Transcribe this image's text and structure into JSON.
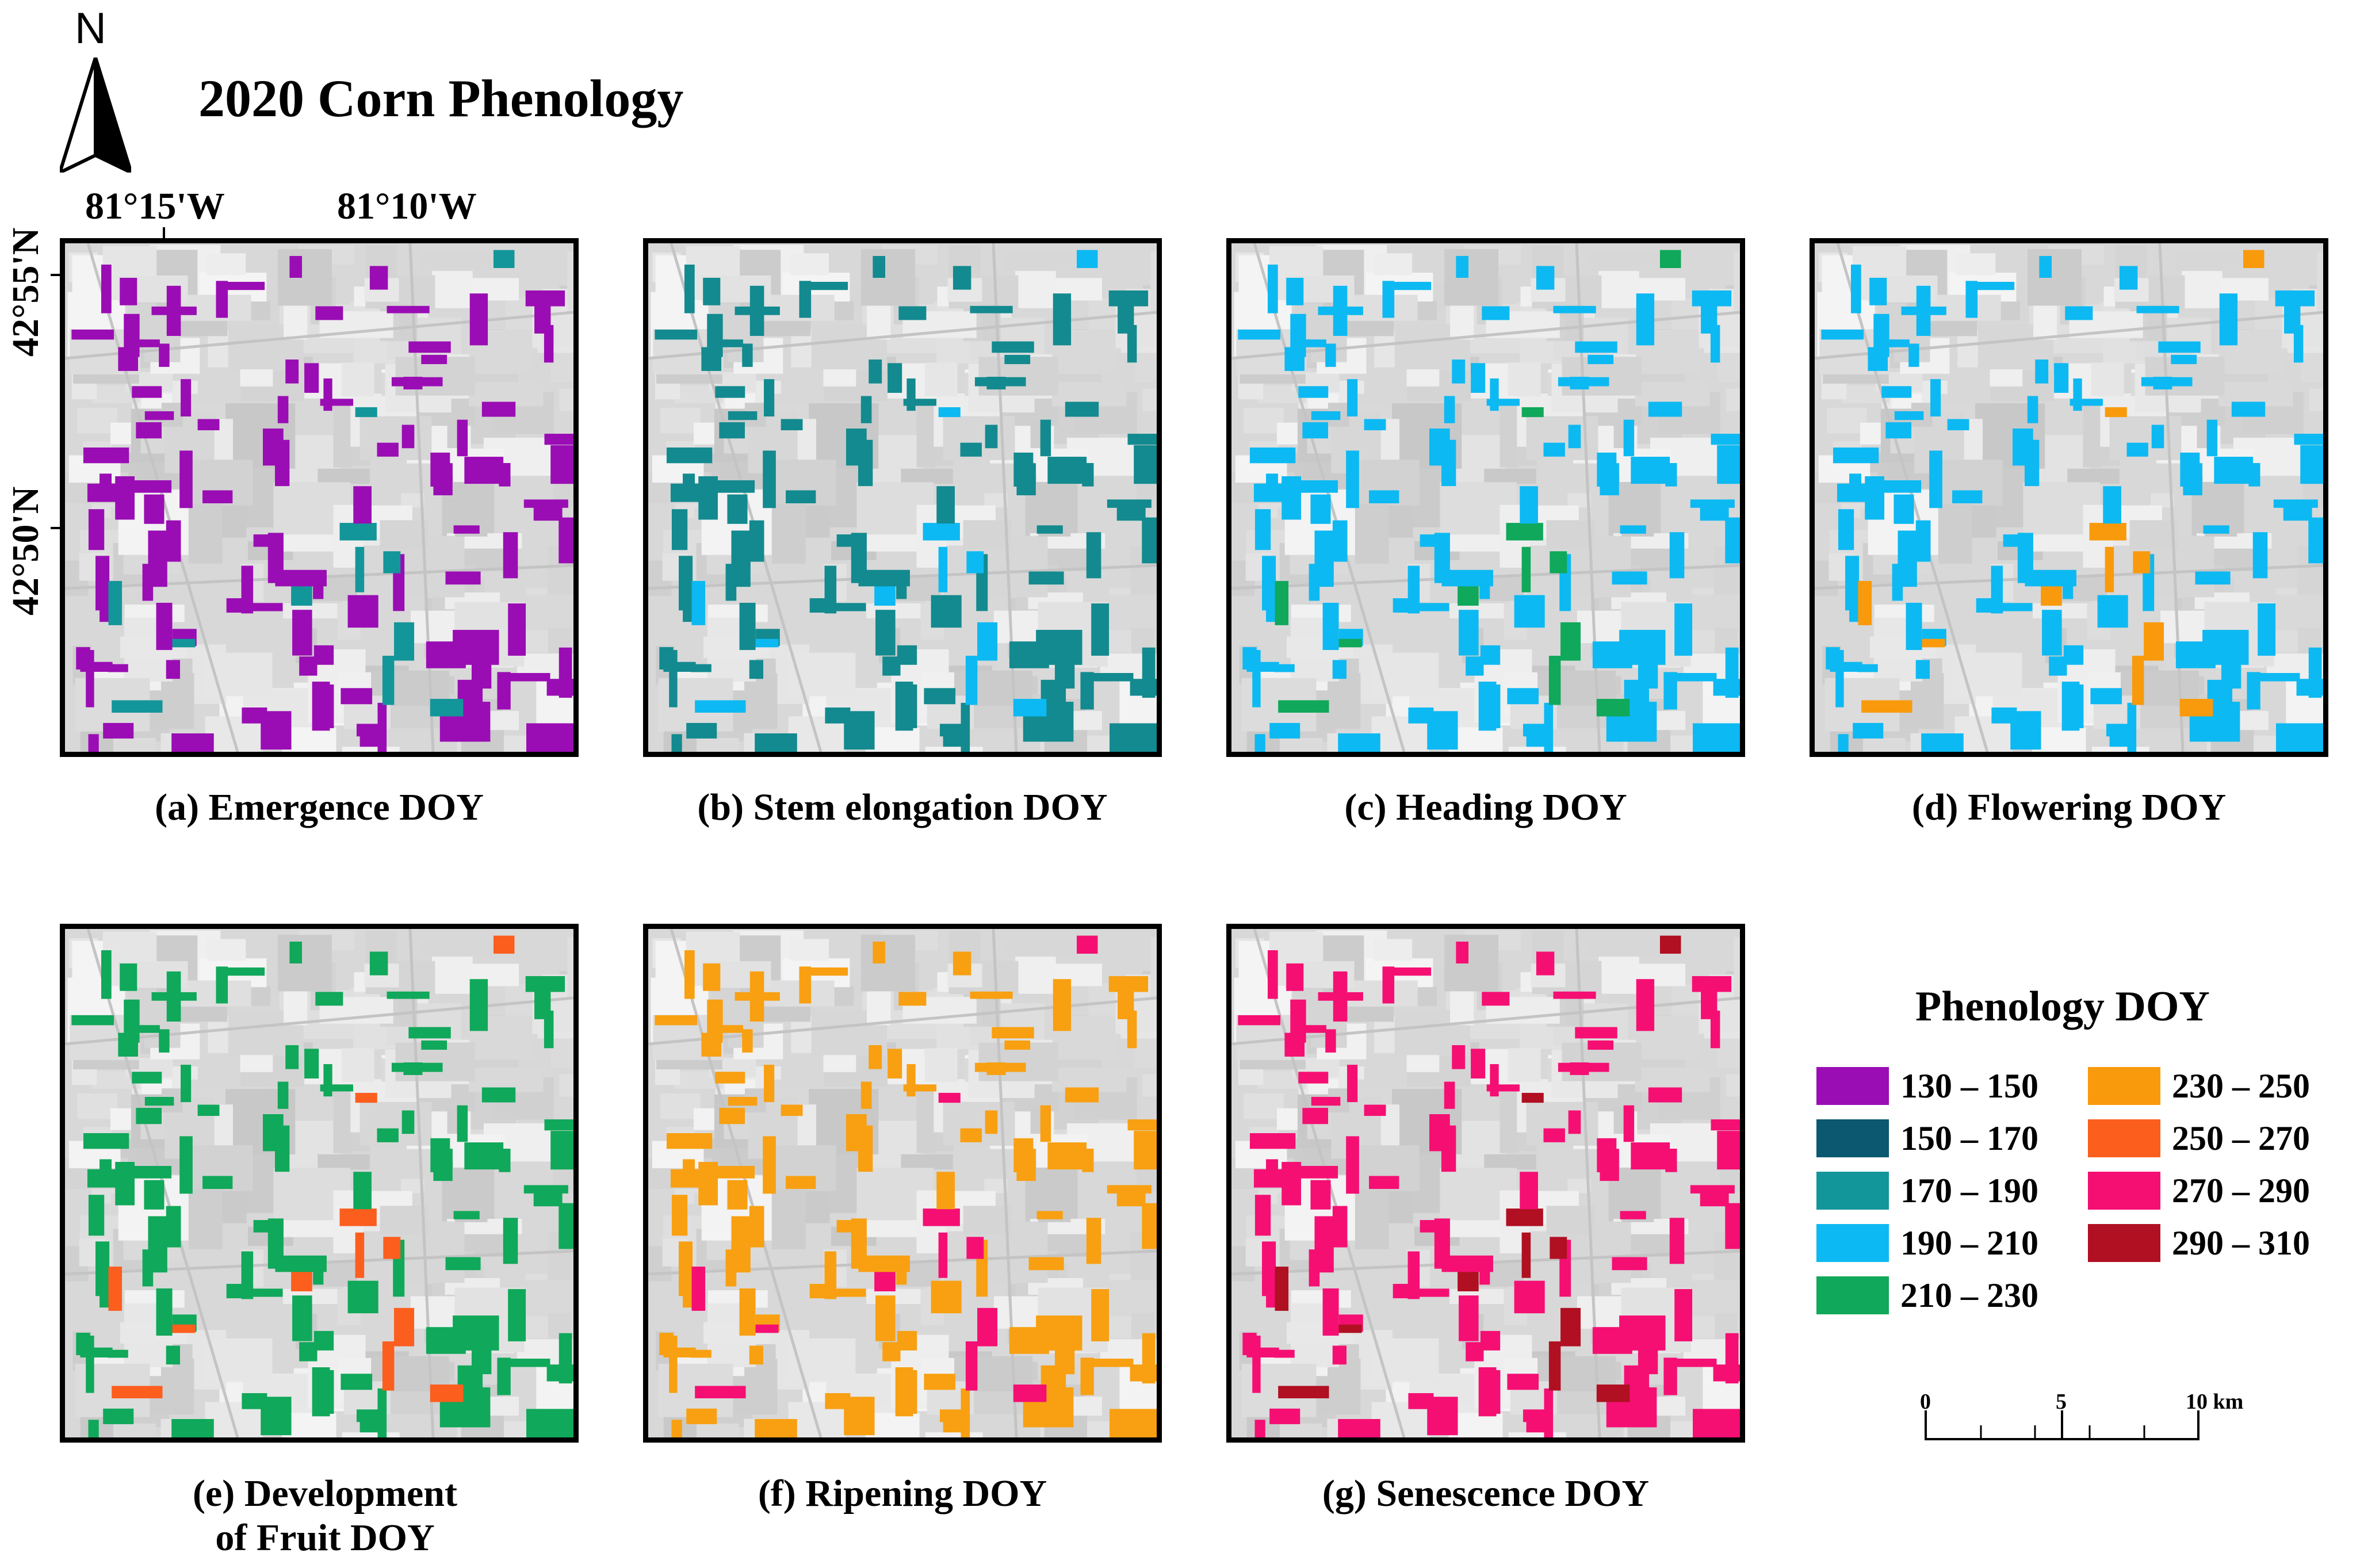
{
  "title": "2020 Corn Phenology",
  "north_label": "N",
  "longitude_labels": [
    "81°15'W",
    "81°10'W"
  ],
  "latitude_labels": [
    "42°55'N",
    "42°50'N"
  ],
  "panels": [
    {
      "caption": "(a) Emergence DOY",
      "color": "#9a0db4"
    },
    {
      "caption": "(b) Stem elongation DOY",
      "color": "#138a8f"
    },
    {
      "caption": "(c) Heading DOY",
      "color": "#0db9f2"
    },
    {
      "caption": "(d) Flowering DOY",
      "color": "#0db9f2"
    },
    {
      "caption": "(e) Development of Fruit DOY",
      "color": "#10a85a"
    },
    {
      "caption": "(f) Ripening DOY",
      "color": "#f8a012"
    },
    {
      "caption": "(g) Senescence DOY",
      "color": "#f50f73"
    }
  ],
  "legend": {
    "title": "Phenology DOY",
    "classes": [
      {
        "label": "130 – 150",
        "color": "#9a0db4"
      },
      {
        "label": "150 – 170",
        "color": "#0b5870"
      },
      {
        "label": "170 – 190",
        "color": "#13969a"
      },
      {
        "label": "190 – 210",
        "color": "#0db9f2"
      },
      {
        "label": "210 – 230",
        "color": "#10a85a"
      },
      {
        "label": "230 – 250",
        "color": "#f99a0c"
      },
      {
        "label": "250 – 270",
        "color": "#fc5e1e"
      },
      {
        "label": "270 – 290",
        "color": "#f50f73"
      },
      {
        "label": "290 – 310",
        "color": "#b01022"
      }
    ]
  },
  "scale_bar": {
    "ticks": [
      "0",
      "5",
      "10 km"
    ]
  }
}
